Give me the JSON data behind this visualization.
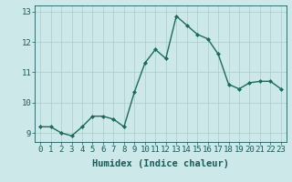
{
  "x": [
    0,
    1,
    2,
    3,
    4,
    5,
    6,
    7,
    8,
    9,
    10,
    11,
    12,
    13,
    14,
    15,
    16,
    17,
    18,
    19,
    20,
    21,
    22,
    23
  ],
  "y": [
    9.2,
    9.2,
    9.0,
    8.9,
    9.2,
    9.55,
    9.55,
    9.45,
    9.2,
    10.35,
    11.3,
    11.75,
    11.45,
    12.85,
    12.55,
    12.25,
    12.1,
    11.6,
    10.6,
    10.45,
    10.65,
    10.7,
    10.7,
    10.45
  ],
  "line_color": "#1a6b5a",
  "marker": "D",
  "marker_size": 2.0,
  "linewidth": 1.0,
  "xlabel": "Humidex (Indice chaleur)",
  "xlim": [
    -0.5,
    23.5
  ],
  "ylim": [
    8.7,
    13.2
  ],
  "yticks": [
    9,
    10,
    11,
    12,
    13
  ],
  "xticks": [
    0,
    1,
    2,
    3,
    4,
    5,
    6,
    7,
    8,
    9,
    10,
    11,
    12,
    13,
    14,
    15,
    16,
    17,
    18,
    19,
    20,
    21,
    22,
    23
  ],
  "bg_color": "#cce8e8",
  "grid_color": "#aacccc",
  "tick_color": "#1a5a5a",
  "label_color": "#1a5a5a",
  "xlabel_fontsize": 7.5,
  "tick_fontsize": 6.5
}
